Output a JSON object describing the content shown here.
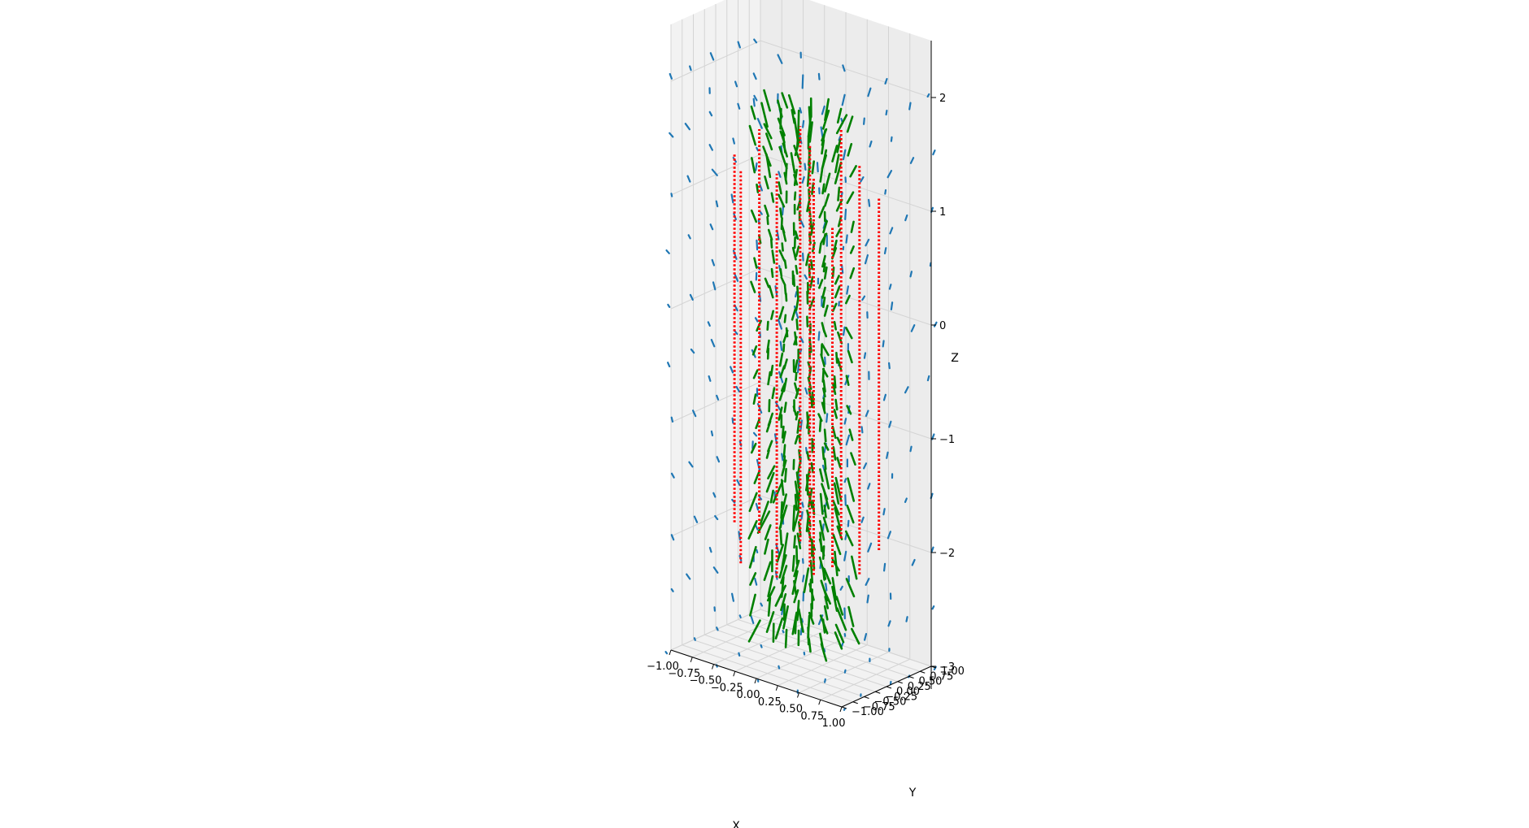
{
  "chart_data": {
    "type": "quiver3d",
    "title": "",
    "xlabel": "X",
    "ylabel": "Y",
    "zlabel": "Z",
    "x_ticks": [
      "−1.00",
      "−0.75",
      "−0.50",
      "−0.25",
      "0.00",
      "0.25",
      "0.50",
      "0.75",
      "1.00"
    ],
    "y_ticks": [
      "−1.00",
      "−0.75",
      "−0.50",
      "−0.25",
      "0.00",
      "0.25",
      "0.50",
      "0.75",
      "1.00"
    ],
    "z_ticks": [
      "−3",
      "−2",
      "−1",
      "0",
      "1",
      "2"
    ],
    "xlim": [
      -1.0,
      1.0
    ],
    "ylim": [
      -1.0,
      1.0
    ],
    "zlim": [
      -3.0,
      2.0
    ],
    "grid": true,
    "colors": {
      "field": "#1f77b4",
      "green_field": "#008000",
      "current_lines": "#ff0000",
      "pane": "#f2f2f2",
      "grid": "#d4d4d4"
    },
    "series": [
      {
        "color": "#1f77b4",
        "marker": "arrow"
      },
      {
        "color": "#008000",
        "marker": "arrow"
      },
      {
        "color": "#ff0000",
        "marker": "dotted-vertical-line"
      }
    ]
  }
}
